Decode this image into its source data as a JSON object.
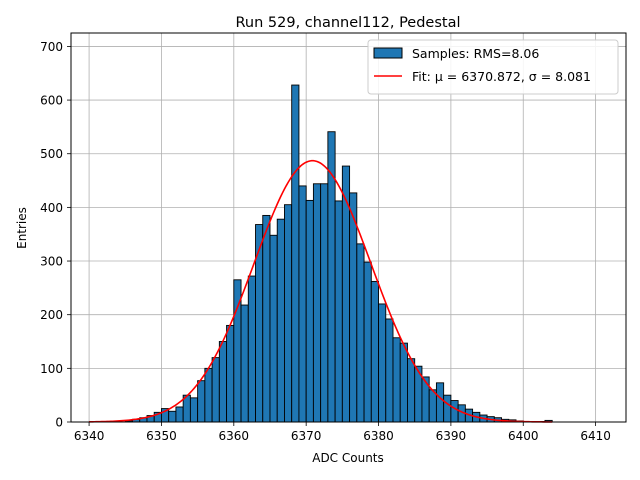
{
  "chart_data": {
    "type": "bar",
    "title": "Run 529, channel112, Pedestal",
    "xlabel": "ADC Counts",
    "ylabel": "Entries",
    "xlim": [
      6337.5,
      6414.2
    ],
    "ylim": [
      0,
      725
    ],
    "xticks": [
      6340,
      6350,
      6360,
      6370,
      6380,
      6390,
      6400,
      6410
    ],
    "yticks": [
      0,
      100,
      200,
      300,
      400,
      500,
      600,
      700
    ],
    "grid": true,
    "legend_position": "top-right",
    "bin_width": 1,
    "bins_start": [
      6345,
      6346,
      6347,
      6348,
      6349,
      6350,
      6351,
      6352,
      6353,
      6354,
      6355,
      6356,
      6357,
      6358,
      6359,
      6360,
      6361,
      6362,
      6363,
      6364,
      6365,
      6366,
      6367,
      6368,
      6369,
      6370,
      6371,
      6372,
      6373,
      6374,
      6375,
      6376,
      6377,
      6378,
      6379,
      6380,
      6381,
      6382,
      6383,
      6384,
      6385,
      6386,
      6387,
      6388,
      6389,
      6390,
      6391,
      6392,
      6393,
      6394,
      6395,
      6396,
      6397,
      6398,
      6399,
      6400,
      6401,
      6402,
      6403
    ],
    "counts": [
      2,
      5,
      8,
      12,
      18,
      25,
      20,
      28,
      50,
      45,
      77,
      100,
      120,
      150,
      180,
      265,
      218,
      272,
      368,
      385,
      348,
      378,
      405,
      628,
      440,
      413,
      444,
      444,
      541,
      412,
      477,
      427,
      332,
      298,
      262,
      220,
      192,
      157,
      147,
      118,
      104,
      84,
      60,
      73,
      50,
      40,
      32,
      24,
      18,
      13,
      10,
      8,
      5,
      4,
      2,
      1,
      1,
      1,
      3
    ],
    "series": [
      {
        "name": "Samples: RMS=8.06",
        "kind": "histogram",
        "color": "#1f77b4",
        "edgecolor": "#000000"
      },
      {
        "name": "Fit: μ = 6370.872, σ = 8.081",
        "kind": "gaussian",
        "color": "#ff0000",
        "mu": 6370.872,
        "sigma": 8.081,
        "amplitude": 487,
        "x_range": [
          6340,
          6404
        ]
      }
    ]
  }
}
